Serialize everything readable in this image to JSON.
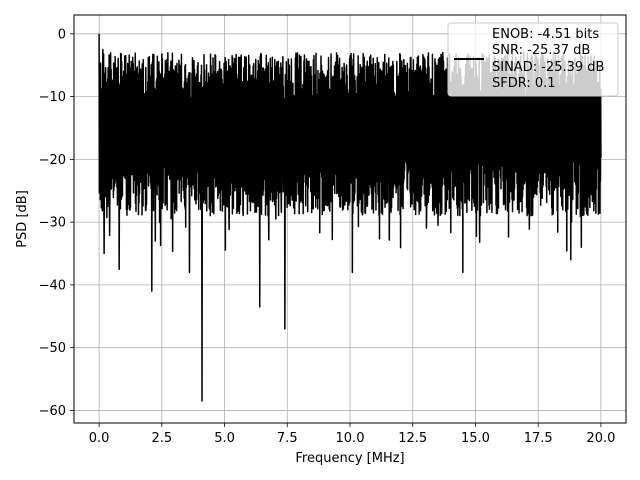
{
  "chart_data": {
    "type": "line",
    "title": "",
    "xlabel": "Frequency [MHz]",
    "ylabel": "PSD [dB]",
    "xlim": [
      -1,
      21
    ],
    "ylim": [
      -62,
      3
    ],
    "xticks": [
      0.0,
      2.5,
      5.0,
      7.5,
      10.0,
      12.5,
      15.0,
      17.5,
      20.0
    ],
    "xtick_labels": [
      "0.0",
      "2.5",
      "5.0",
      "7.5",
      "10.0",
      "12.5",
      "15.0",
      "17.5",
      "20.0"
    ],
    "yticks": [
      0,
      -10,
      -20,
      -30,
      -40,
      -50,
      -60
    ],
    "ytick_labels": [
      "0",
      "−10",
      "−20",
      "−30",
      "−40",
      "−50",
      "−60"
    ],
    "grid": true,
    "legend_position": "top-right",
    "series": [
      {
        "name": "ENOB: -4.51 bits",
        "color": "#000000",
        "x_range": [
          0,
          20
        ],
        "baseline_db": -15,
        "peaks": [
          {
            "x": 0.0,
            "y": 0.0
          },
          {
            "x": 0.15,
            "y": -2.5
          },
          {
            "x": 0.6,
            "y": -7
          },
          {
            "x": 1.1,
            "y": -6.5
          },
          {
            "x": 2.4,
            "y": -6
          },
          {
            "x": 7.1,
            "y": -4.5
          },
          {
            "x": 10.0,
            "y": -3.5
          },
          {
            "x": 13.7,
            "y": -3
          },
          {
            "x": 18.3,
            "y": -5
          },
          {
            "x": 19.6,
            "y": -3.5
          }
        ],
        "dips": [
          {
            "x": 0.2,
            "y": -35
          },
          {
            "x": 0.8,
            "y": -37.5
          },
          {
            "x": 2.1,
            "y": -41
          },
          {
            "x": 3.6,
            "y": -38
          },
          {
            "x": 4.1,
            "y": -58.5
          },
          {
            "x": 6.4,
            "y": -43.5
          },
          {
            "x": 7.4,
            "y": -47
          },
          {
            "x": 10.1,
            "y": -38
          },
          {
            "x": 14.5,
            "y": -38
          },
          {
            "x": 18.8,
            "y": -36
          }
        ]
      }
    ],
    "legend_entries": [
      "ENOB: -4.51 bits",
      "SNR: -25.37 dB",
      "SINAD: -25.39 dB",
      "SFDR: 0.1"
    ]
  }
}
